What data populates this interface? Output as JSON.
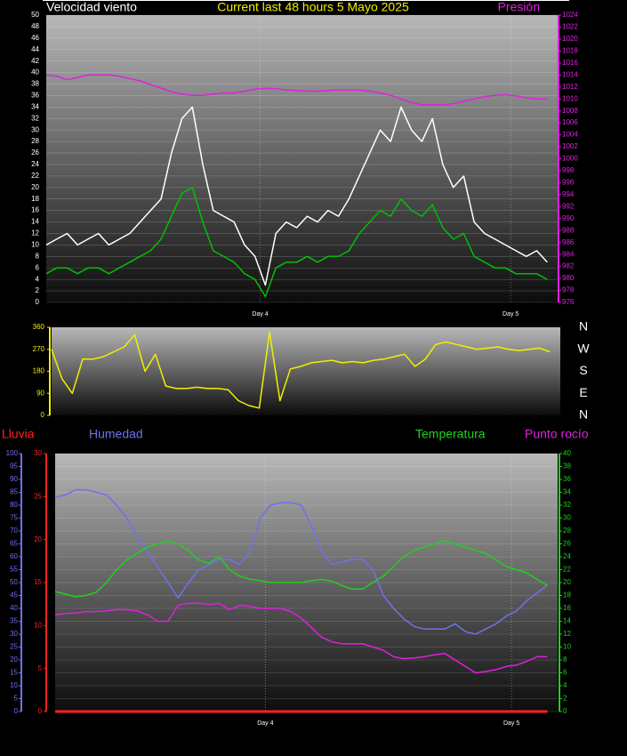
{
  "chart_data": [
    {
      "type": "line",
      "title": "Current last 48 hours 5 Mayo 2025",
      "grid": true,
      "x": [
        0,
        1,
        2,
        3,
        4,
        5,
        6,
        7,
        8,
        9,
        10,
        11,
        12,
        13,
        14,
        15,
        16,
        17,
        18,
        19,
        20,
        21,
        22,
        23,
        24,
        25,
        26,
        27,
        28,
        29,
        30,
        31,
        32,
        33,
        34,
        35,
        36,
        37,
        38,
        39,
        40,
        41,
        42,
        43,
        44,
        45,
        46,
        47,
        48
      ],
      "xlim": [
        0,
        49
      ],
      "xticks": [
        {
          "value": 20.5,
          "label": "Day 4"
        },
        {
          "value": 44.5,
          "label": "Day 5"
        }
      ],
      "ylim": [
        0,
        50
      ],
      "yticks": [
        0,
        2,
        4,
        6,
        8,
        10,
        12,
        14,
        16,
        18,
        20,
        22,
        24,
        26,
        28,
        30,
        32,
        34,
        36,
        38,
        40,
        42,
        44,
        46,
        48,
        50
      ],
      "y2lim": [
        976,
        1024
      ],
      "y2ticks": [
        976,
        978,
        980,
        982,
        984,
        986,
        988,
        990,
        992,
        994,
        996,
        998,
        1000,
        1002,
        1004,
        1006,
        1008,
        1010,
        1012,
        1014,
        1016,
        1018,
        1020,
        1022,
        1024
      ],
      "series": [
        {
          "name": "Velocidad viento",
          "color": "#ffffff",
          "values": [
            10,
            11,
            12,
            10,
            11,
            12,
            10,
            11,
            12,
            14,
            16,
            18,
            26,
            32,
            34,
            24,
            16,
            15,
            14,
            10,
            8,
            3,
            12,
            14,
            13,
            15,
            14,
            16,
            15,
            18,
            22,
            26,
            30,
            28,
            34,
            30,
            28,
            32,
            24,
            20,
            22,
            14,
            12,
            11,
            10,
            9,
            8,
            9,
            7
          ]
        },
        {
          "color": "#00c000",
          "values": [
            5,
            6,
            6,
            5,
            6,
            6,
            5,
            6,
            7,
            8,
            9,
            11,
            15,
            19,
            20,
            14,
            9,
            8,
            7,
            5,
            4,
            1,
            6,
            7,
            7,
            8,
            7,
            8,
            8,
            9,
            12,
            14,
            16,
            15,
            18,
            16,
            15,
            17,
            13,
            11,
            12,
            8,
            7,
            6,
            6,
            5,
            5,
            5,
            4
          ]
        },
        {
          "name": "Presión",
          "color": "#e020e0",
          "axis": "y2",
          "values": [
            1014,
            1013.8,
            1013.2,
            1013.6,
            1014,
            1014,
            1014,
            1013.8,
            1013.4,
            1013,
            1012.4,
            1011.8,
            1011.2,
            1010.8,
            1010.6,
            1010.6,
            1010.8,
            1011,
            1011,
            1011.3,
            1011.6,
            1011.8,
            1011.7,
            1011.5,
            1011.4,
            1011.3,
            1011.3,
            1011.4,
            1011.5,
            1011.5,
            1011.5,
            1011.3,
            1011,
            1010.6,
            1010,
            1009.4,
            1009,
            1009,
            1009,
            1009.2,
            1009.6,
            1010,
            1010.4,
            1010.6,
            1010.7,
            1010.5,
            1010.2,
            1010,
            1010
          ]
        }
      ]
    },
    {
      "type": "line",
      "grid": false,
      "x": [
        0,
        1,
        2,
        3,
        4,
        5,
        6,
        7,
        8,
        9,
        10,
        11,
        12,
        13,
        14,
        15,
        16,
        17,
        18,
        19,
        20,
        21,
        22,
        23,
        24,
        25,
        26,
        27,
        28,
        29,
        30,
        31,
        32,
        33,
        34,
        35,
        36,
        37,
        38,
        39,
        40,
        41,
        42,
        43,
        44,
        45,
        46,
        47,
        48
      ],
      "xlim": [
        0,
        49
      ],
      "ylim": [
        0,
        360
      ],
      "yticks": [
        0,
        90,
        180,
        270,
        360
      ],
      "y2lim": [
        0,
        360
      ],
      "y2ticks": [
        {
          "value": 360,
          "label": "N"
        },
        {
          "value": 270,
          "label": "W"
        },
        {
          "value": 180,
          "label": "S"
        },
        {
          "value": 90,
          "label": "E"
        },
        {
          "value": 0,
          "label": "N"
        }
      ],
      "series": [
        {
          "color": "#f0f000",
          "values": [
            270,
            150,
            90,
            230,
            230,
            240,
            260,
            280,
            330,
            180,
            250,
            120,
            110,
            110,
            115,
            110,
            110,
            105,
            60,
            40,
            30,
            340,
            60,
            190,
            200,
            215,
            220,
            225,
            215,
            220,
            215,
            225,
            230,
            240,
            250,
            200,
            230,
            290,
            300,
            290,
            280,
            270,
            275,
            280,
            270,
            265,
            270,
            275,
            260
          ]
        }
      ]
    },
    {
      "type": "line",
      "grid": true,
      "x": [
        0,
        1,
        2,
        3,
        4,
        5,
        6,
        7,
        8,
        9,
        10,
        11,
        12,
        13,
        14,
        15,
        16,
        17,
        18,
        19,
        20,
        21,
        22,
        23,
        24,
        25,
        26,
        27,
        28,
        29,
        30,
        31,
        32,
        33,
        34,
        35,
        36,
        37,
        38,
        39,
        40,
        41,
        42,
        43,
        44,
        45,
        46,
        47,
        48
      ],
      "xlim": [
        0,
        49
      ],
      "xticks": [
        {
          "value": 20.5,
          "label": "Day 4"
        },
        {
          "value": 44.5,
          "label": "Day 5"
        }
      ],
      "ylim": [
        0,
        100
      ],
      "yticks": [
        0,
        5,
        10,
        15,
        20,
        25,
        30,
        35,
        40,
        45,
        50,
        55,
        60,
        65,
        70,
        75,
        80,
        85,
        90,
        95,
        100
      ],
      "y2lim": [
        0,
        40
      ],
      "y2ticks": [
        0,
        2,
        4,
        6,
        8,
        10,
        12,
        14,
        16,
        18,
        20,
        22,
        24,
        26,
        28,
        30,
        32,
        34,
        36,
        38,
        40
      ],
      "y3lim": [
        0,
        30
      ],
      "y3ticks": [
        0,
        5,
        10,
        15,
        20,
        25,
        30
      ],
      "series": [
        {
          "name": "Lluvia",
          "color": "#ff2020",
          "axis": "y3",
          "values": [
            0,
            0,
            0,
            0,
            0,
            0,
            0,
            0,
            0,
            0,
            0,
            0,
            0,
            0,
            0,
            0,
            0,
            0,
            0,
            0,
            0,
            0,
            0,
            0,
            0,
            0,
            0,
            0,
            0,
            0,
            0,
            0,
            0,
            0,
            0,
            0,
            0,
            0,
            0,
            0,
            0,
            0,
            0,
            0,
            0,
            0,
            0,
            0,
            0
          ]
        },
        {
          "name": "Humedad",
          "color": "#7070f0",
          "values": [
            83,
            84,
            86,
            86,
            85,
            84,
            80,
            75,
            68,
            62,
            56,
            50,
            44,
            50,
            55,
            57,
            59,
            59,
            57,
            62,
            75,
            80,
            81,
            81,
            80,
            72,
            62,
            57,
            58,
            59,
            59,
            55,
            45,
            40,
            36,
            33,
            32,
            32,
            32,
            34,
            31,
            30,
            32,
            34,
            37,
            39,
            43,
            46,
            49
          ]
        },
        {
          "name": "Temperatura",
          "color": "#20d020",
          "axis": "y2",
          "values": [
            18.6,
            18.2,
            17.8,
            18,
            18.5,
            20,
            22,
            23.5,
            24.5,
            25.5,
            26,
            26.5,
            26,
            25,
            23.5,
            23,
            24,
            22,
            21,
            20.5,
            20.3,
            20,
            20,
            20,
            20,
            20.3,
            20.5,
            20.2,
            19.5,
            19,
            19,
            20,
            21,
            22.5,
            24,
            25,
            25.5,
            26,
            26.5,
            26,
            25.5,
            25,
            24.5,
            23.5,
            22.5,
            22,
            21.5,
            20.5,
            19.5
          ]
        },
        {
          "name": "Punto rocío",
          "color": "#e020e0",
          "axis": "y2",
          "values": [
            15,
            15.2,
            15.3,
            15.5,
            15.5,
            15.6,
            15.8,
            15.8,
            15.6,
            15,
            14,
            14,
            16.5,
            16.8,
            16.8,
            16.6,
            16.8,
            15.8,
            16.5,
            16.3,
            16,
            16,
            16,
            15.5,
            14.5,
            13,
            11.5,
            10.8,
            10.5,
            10.5,
            10.5,
            10,
            9.5,
            8.5,
            8.2,
            8.3,
            8.5,
            8.8,
            9,
            8,
            7,
            6,
            6.2,
            6.5,
            7,
            7.2,
            7.8,
            8.5,
            8.5
          ]
        }
      ]
    }
  ]
}
